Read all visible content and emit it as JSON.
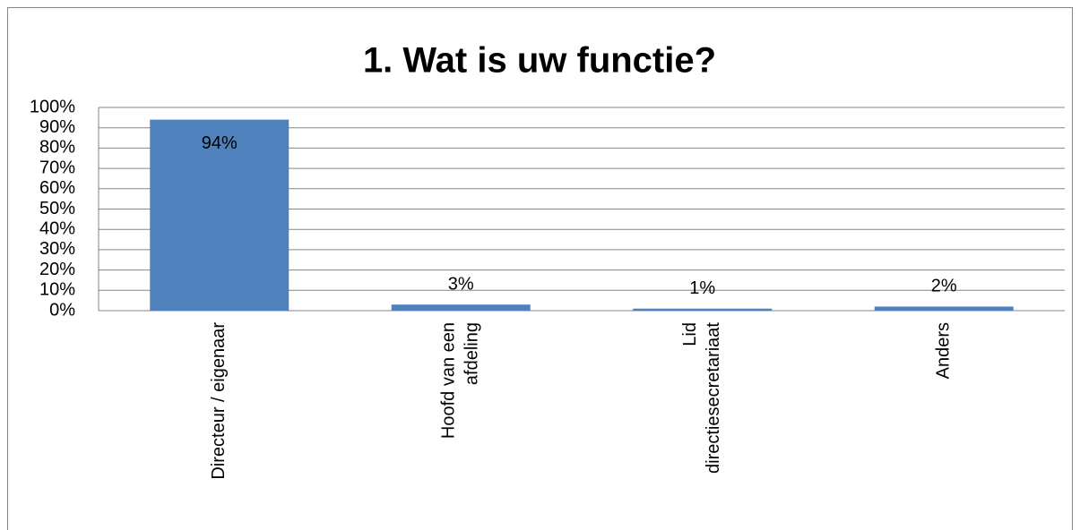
{
  "chart_data": {
    "type": "bar",
    "title": "1. Wat is uw functie?",
    "categories": [
      "Directeur / eigenaar",
      "Hoofd van een afdeling",
      "Lid directiesecretariaat",
      "Anders"
    ],
    "values": [
      94,
      3,
      1,
      2
    ],
    "value_labels": [
      "94%",
      "3%",
      "1%",
      "2%"
    ],
    "color": "#4f81bd",
    "ylim": [
      0,
      100
    ],
    "yticks": [
      {
        "value": 0,
        "label": "0%"
      },
      {
        "value": 10,
        "label": "10%"
      },
      {
        "value": 20,
        "label": "20%"
      },
      {
        "value": 30,
        "label": "30%"
      },
      {
        "value": 40,
        "label": "40%"
      },
      {
        "value": 50,
        "label": "50%"
      },
      {
        "value": 60,
        "label": "60%"
      },
      {
        "value": 70,
        "label": "70%"
      },
      {
        "value": 80,
        "label": "80%"
      },
      {
        "value": 90,
        "label": "90%"
      },
      {
        "value": 100,
        "label": "100%"
      }
    ],
    "grid": true
  }
}
